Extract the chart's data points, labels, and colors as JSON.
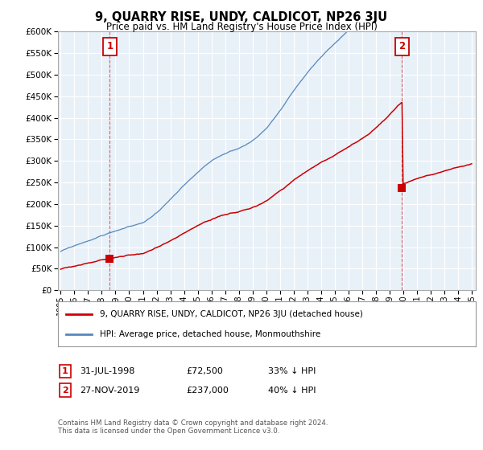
{
  "title": "9, QUARRY RISE, UNDY, CALDICOT, NP26 3JU",
  "subtitle": "Price paid vs. HM Land Registry's House Price Index (HPI)",
  "ylim": [
    0,
    600000
  ],
  "yticks": [
    0,
    50000,
    100000,
    150000,
    200000,
    250000,
    300000,
    350000,
    400000,
    450000,
    500000,
    550000,
    600000
  ],
  "xlim_start": 1994.8,
  "xlim_end": 2025.3,
  "background_color": "#ffffff",
  "plot_bg_color": "#e8f0f8",
  "grid_color": "#ffffff",
  "hpi_color": "#5588bb",
  "price_color": "#cc0000",
  "purchase1": {
    "date_x": 1998.58,
    "price": 72500,
    "label": "1",
    "info": "31-JUL-1998",
    "price_str": "£72,500",
    "hpi_pct": "33% ↓ HPI"
  },
  "purchase2": {
    "date_x": 2019.92,
    "price": 237000,
    "label": "2",
    "info": "27-NOV-2019",
    "price_str": "£237,000",
    "hpi_pct": "40% ↓ HPI"
  },
  "legend_house_label": "9, QUARRY RISE, UNDY, CALDICOT, NP26 3JU (detached house)",
  "legend_hpi_label": "HPI: Average price, detached house, Monmouthshire",
  "footer": "Contains HM Land Registry data © Crown copyright and database right 2024.\nThis data is licensed under the Open Government Licence v3.0.",
  "xticks": [
    1995,
    1996,
    1997,
    1998,
    1999,
    2000,
    2001,
    2002,
    2003,
    2004,
    2005,
    2006,
    2007,
    2008,
    2009,
    2010,
    2011,
    2012,
    2013,
    2014,
    2015,
    2016,
    2017,
    2018,
    2019,
    2020,
    2021,
    2022,
    2023,
    2024,
    2025
  ]
}
